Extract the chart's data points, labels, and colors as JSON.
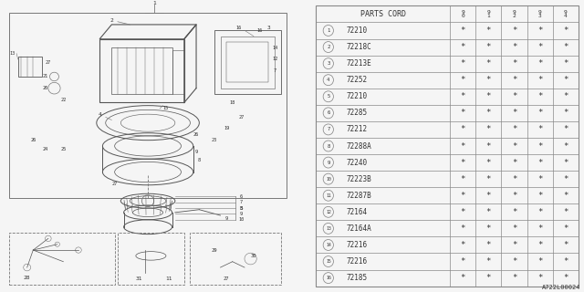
{
  "diagram_id": "A722L00024",
  "bg_color": "#f5f5f5",
  "parts": [
    {
      "num": 1,
      "code": "72210"
    },
    {
      "num": 2,
      "code": "72218C"
    },
    {
      "num": 3,
      "code": "72213E"
    },
    {
      "num": 4,
      "code": "72252"
    },
    {
      "num": 5,
      "code": "72210"
    },
    {
      "num": 6,
      "code": "72285"
    },
    {
      "num": 7,
      "code": "72212"
    },
    {
      "num": 8,
      "code": "72288A"
    },
    {
      "num": 9,
      "code": "72240"
    },
    {
      "num": 10,
      "code": "72223B"
    },
    {
      "num": 11,
      "code": "72287B"
    },
    {
      "num": 12,
      "code": "72164"
    },
    {
      "num": 13,
      "code": "72164A"
    },
    {
      "num": 14,
      "code": "72216"
    },
    {
      "num": 15,
      "code": "72216"
    },
    {
      "num": 16,
      "code": "72185"
    }
  ],
  "years": [
    "9\n0",
    "9\n1",
    "9\n2",
    "9\n3",
    "9\n4"
  ],
  "col_header": "PARTS CORD",
  "line_color": "#777777",
  "text_color": "#333333",
  "draw_color": "#555555",
  "font_family": "monospace",
  "star_symbol": "*"
}
